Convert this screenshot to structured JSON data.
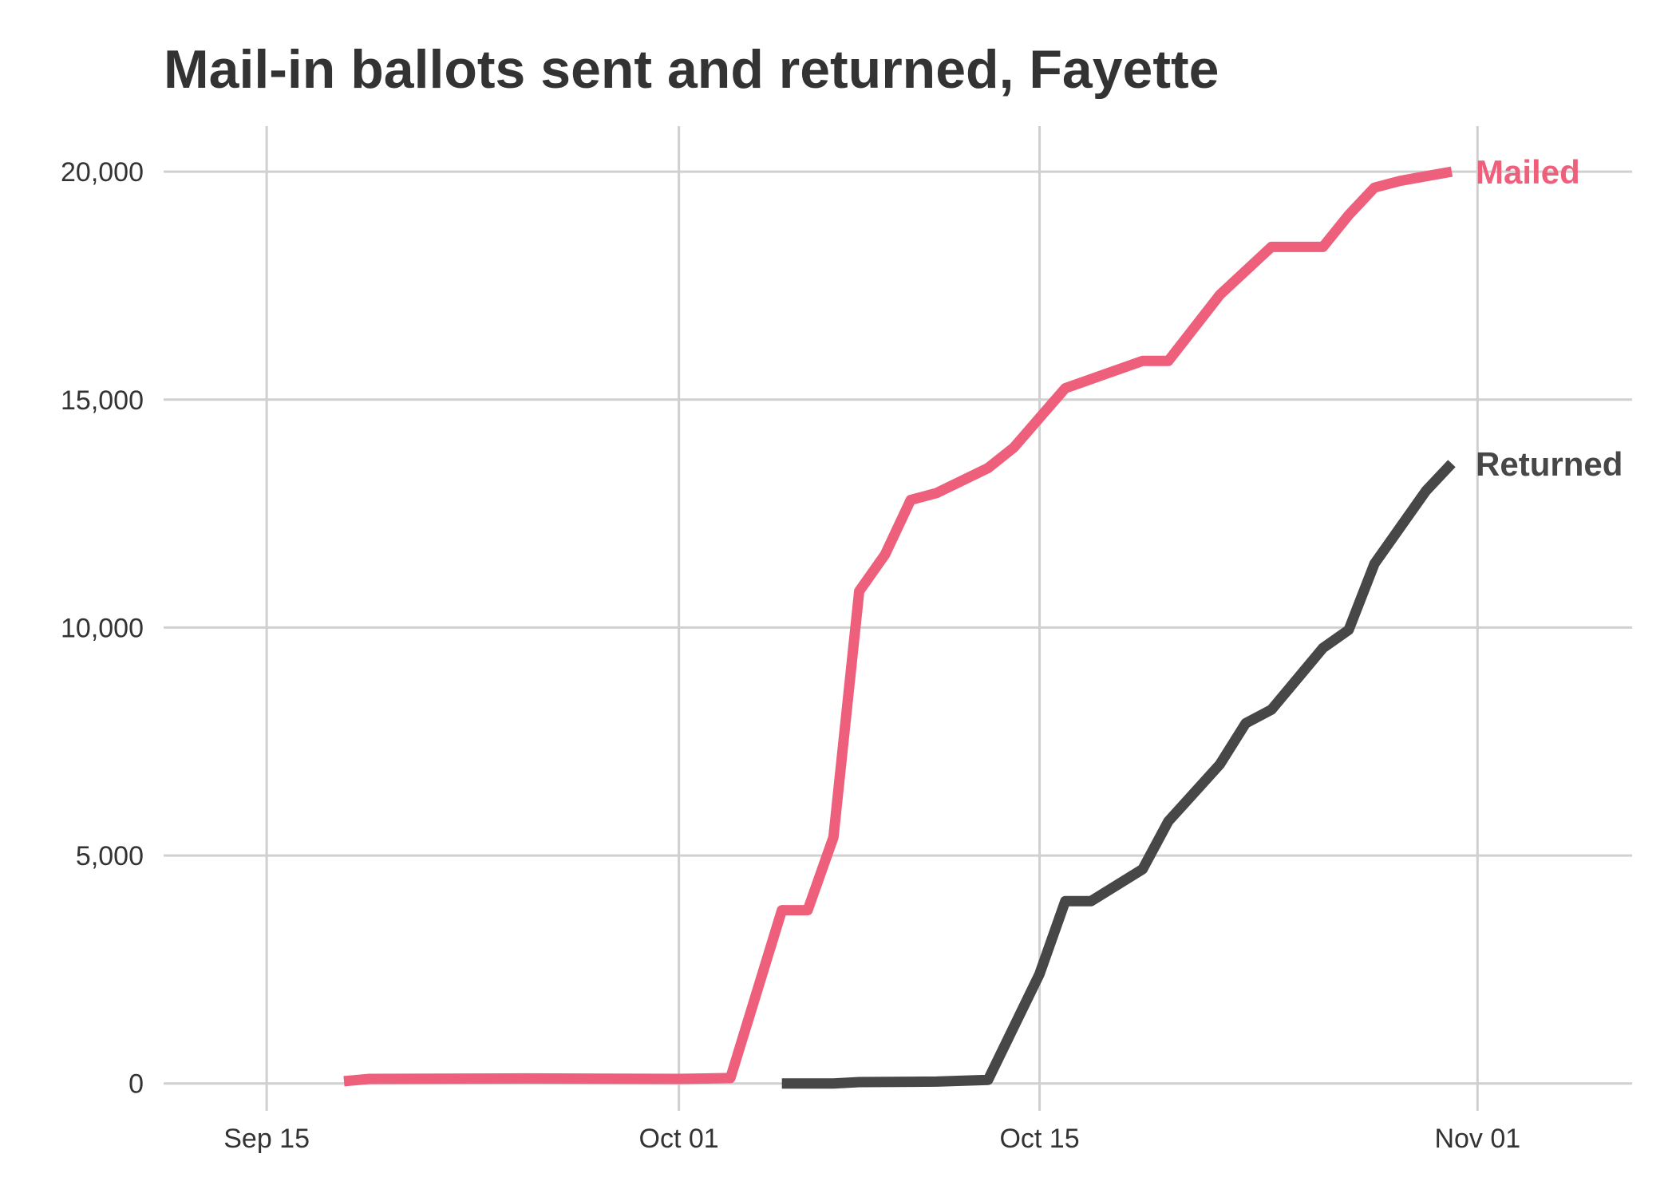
{
  "chart_data": {
    "type": "line",
    "title": "Mail-in ballots sent and returned, Fayette",
    "xlabel": "",
    "ylabel": "",
    "xlim": [
      "2020-09-11",
      "2020-11-07"
    ],
    "ylim": [
      -600,
      21000
    ],
    "x_ticks": [
      {
        "date": "2020-09-15",
        "label": "Sep 15"
      },
      {
        "date": "2020-10-01",
        "label": "Oct 01"
      },
      {
        "date": "2020-10-15",
        "label": "Oct 15"
      },
      {
        "date": "2020-11-01",
        "label": "Nov 01"
      }
    ],
    "y_ticks": [
      {
        "value": 0,
        "label": "0"
      },
      {
        "value": 5000,
        "label": "5,000"
      },
      {
        "value": 10000,
        "label": "10,000"
      },
      {
        "value": 15000,
        "label": "15,000"
      },
      {
        "value": 20000,
        "label": "20,000"
      }
    ],
    "grid": true,
    "legend": "direct-labels-at-line-ends",
    "series": [
      {
        "name": "Mailed",
        "color": "#EE5F7B",
        "points": [
          [
            "2020-09-18",
            50
          ],
          [
            "2020-09-19",
            100
          ],
          [
            "2020-09-25",
            110
          ],
          [
            "2020-10-01",
            100
          ],
          [
            "2020-10-03",
            120
          ],
          [
            "2020-10-05",
            3800
          ],
          [
            "2020-10-06",
            3800
          ],
          [
            "2020-10-07",
            5400
          ],
          [
            "2020-10-08",
            10800
          ],
          [
            "2020-10-09",
            11600
          ],
          [
            "2020-10-10",
            12800
          ],
          [
            "2020-10-11",
            12950
          ],
          [
            "2020-10-13",
            13500
          ],
          [
            "2020-10-14",
            13950
          ],
          [
            "2020-10-15",
            14600
          ],
          [
            "2020-10-16",
            15250
          ],
          [
            "2020-10-19",
            15850
          ],
          [
            "2020-10-20",
            15850
          ],
          [
            "2020-10-22",
            17300
          ],
          [
            "2020-10-24",
            18350
          ],
          [
            "2020-10-26",
            18350
          ],
          [
            "2020-10-27",
            19050
          ],
          [
            "2020-10-28",
            19650
          ],
          [
            "2020-10-29",
            19800
          ],
          [
            "2020-10-31",
            20000
          ]
        ]
      },
      {
        "name": "Returned",
        "color": "#474747",
        "points": [
          [
            "2020-10-05",
            0
          ],
          [
            "2020-10-07",
            0
          ],
          [
            "2020-10-08",
            30
          ],
          [
            "2020-10-11",
            40
          ],
          [
            "2020-10-13",
            80
          ],
          [
            "2020-10-15",
            2400
          ],
          [
            "2020-10-16",
            4000
          ],
          [
            "2020-10-17",
            4000
          ],
          [
            "2020-10-19",
            4700
          ],
          [
            "2020-10-20",
            5750
          ],
          [
            "2020-10-22",
            7000
          ],
          [
            "2020-10-23",
            7900
          ],
          [
            "2020-10-24",
            8200
          ],
          [
            "2020-10-26",
            9550
          ],
          [
            "2020-10-27",
            9950
          ],
          [
            "2020-10-28",
            11400
          ],
          [
            "2020-10-30",
            13000
          ],
          [
            "2020-10-31",
            13600
          ]
        ]
      }
    ]
  }
}
